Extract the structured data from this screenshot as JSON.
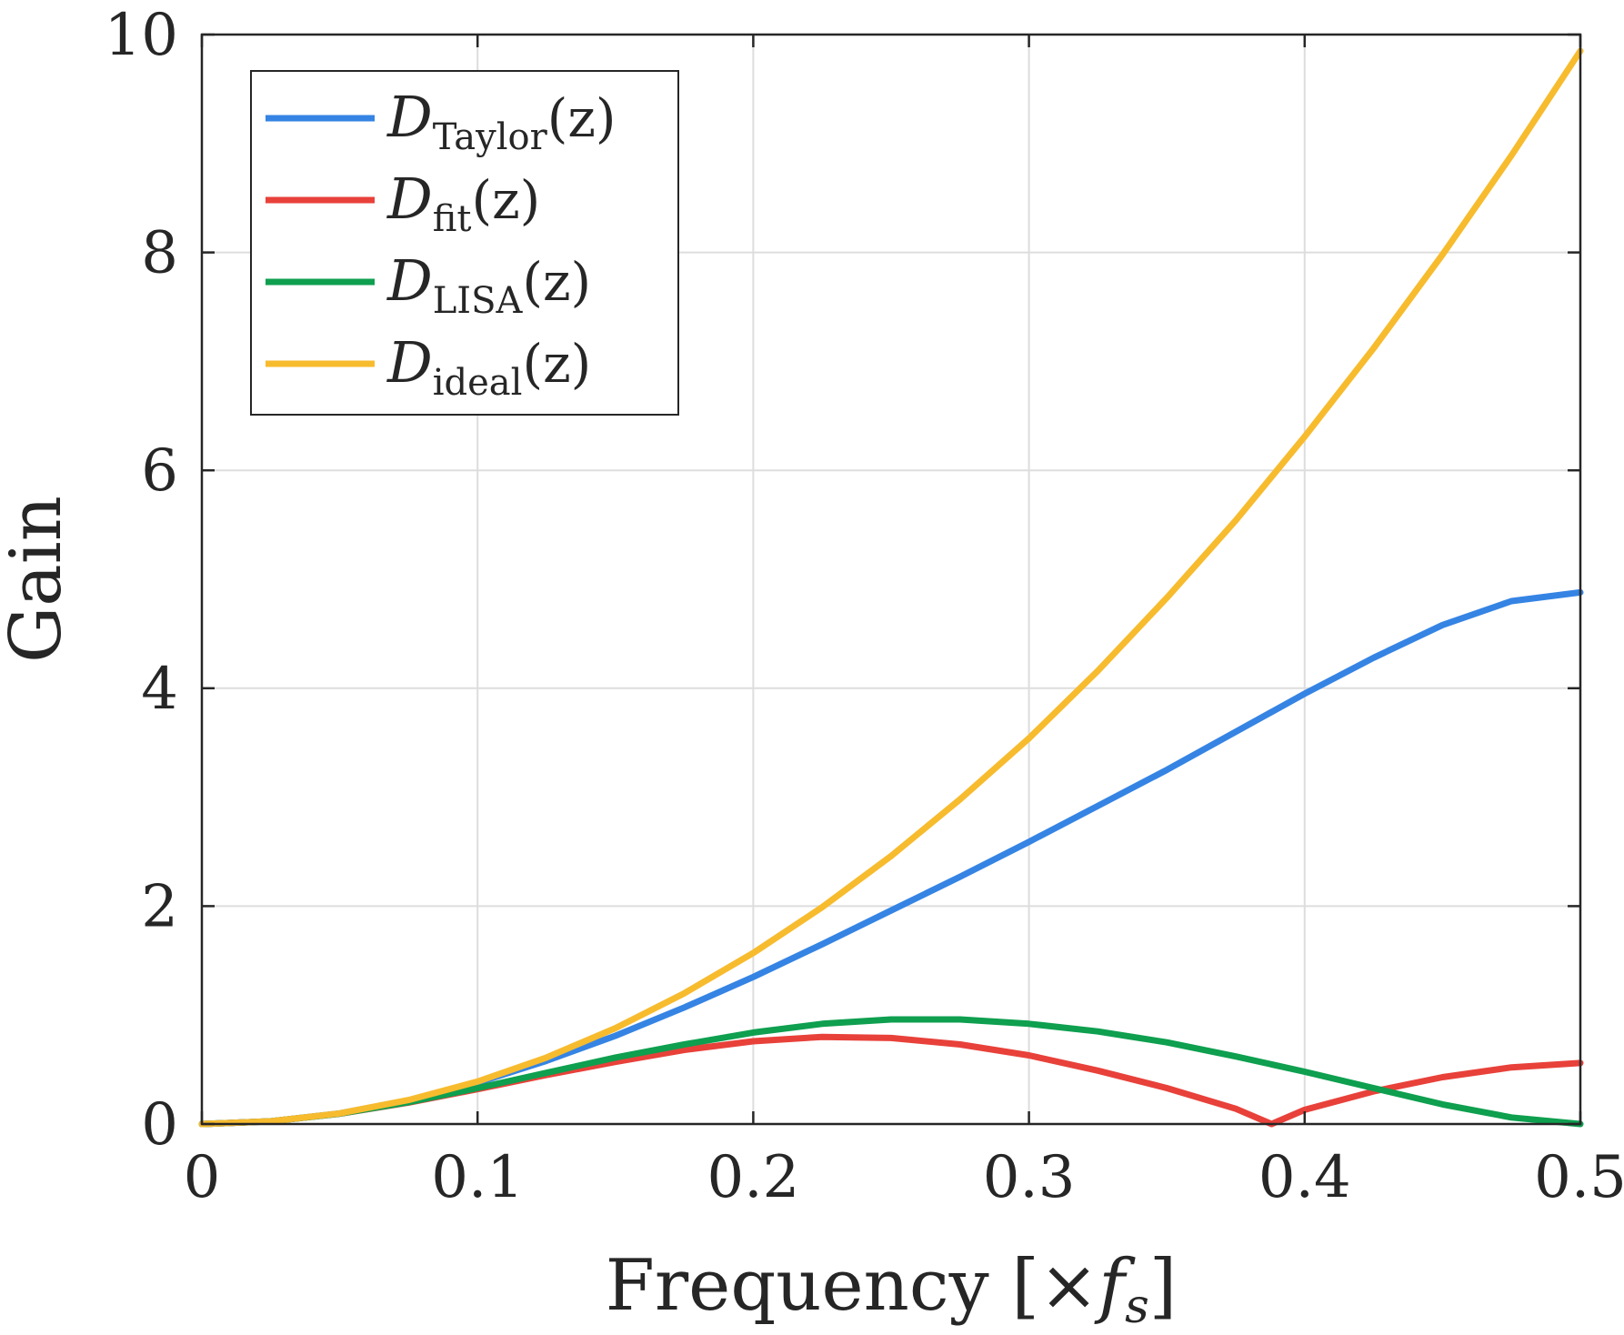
{
  "chart_data": {
    "type": "line",
    "xlabel": "Frequency [×f_s]",
    "xlabel_parts": {
      "word": "Frequency",
      "open": "[×",
      "f": "f",
      "sub": "s",
      "close": "]"
    },
    "ylabel": "Gain",
    "xlim": [
      0,
      0.5
    ],
    "ylim": [
      0,
      10
    ],
    "xticks": [
      0,
      0.1,
      0.2,
      0.3,
      0.4,
      0.5
    ],
    "xtick_labels": [
      "0",
      "0.1",
      "0.2",
      "0.3",
      "0.4",
      "0.5"
    ],
    "yticks": [
      0,
      2,
      4,
      6,
      8,
      10
    ],
    "ytick_labels": [
      "0",
      "2",
      "4",
      "6",
      "8",
      "10"
    ],
    "grid": true,
    "legend_position": "top-left",
    "series": [
      {
        "name": "D_Taylor(z)",
        "label_main": "D",
        "label_sub": "Taylor",
        "label_arg": "(z)",
        "color": "#3584e4",
        "x": [
          0,
          0.025,
          0.05,
          0.075,
          0.1,
          0.125,
          0.15,
          0.175,
          0.2,
          0.225,
          0.25,
          0.275,
          0.3,
          0.325,
          0.35,
          0.375,
          0.4,
          0.425,
          0.45,
          0.475,
          0.5
        ],
        "y": [
          0,
          0.025,
          0.098,
          0.218,
          0.38,
          0.58,
          0.81,
          1.07,
          1.35,
          1.65,
          1.96,
          2.27,
          2.59,
          2.92,
          3.25,
          3.6,
          3.95,
          4.28,
          4.58,
          4.8,
          4.88
        ]
      },
      {
        "name": "D_fit(z)",
        "label_main": "D",
        "label_sub": "fit",
        "label_arg": "(z)",
        "color": "#e8413a",
        "x": [
          0,
          0.025,
          0.05,
          0.075,
          0.1,
          0.125,
          0.15,
          0.175,
          0.2,
          0.225,
          0.25,
          0.275,
          0.3,
          0.325,
          0.35,
          0.375,
          0.388,
          0.4,
          0.425,
          0.45,
          0.475,
          0.5
        ],
        "y": [
          0,
          0.025,
          0.094,
          0.197,
          0.32,
          0.45,
          0.57,
          0.68,
          0.76,
          0.8,
          0.79,
          0.73,
          0.63,
          0.49,
          0.33,
          0.14,
          0.0,
          0.13,
          0.3,
          0.43,
          0.52,
          0.56
        ]
      },
      {
        "name": "D_LISA(z)",
        "label_main": "D",
        "label_sub": "LISA",
        "label_arg": "(z)",
        "color": "#0e9f4f",
        "x": [
          0,
          0.025,
          0.05,
          0.075,
          0.1,
          0.125,
          0.15,
          0.175,
          0.2,
          0.225,
          0.25,
          0.275,
          0.3,
          0.325,
          0.35,
          0.375,
          0.4,
          0.425,
          0.45,
          0.475,
          0.5
        ],
        "y": [
          0,
          0.025,
          0.095,
          0.2,
          0.33,
          0.47,
          0.61,
          0.73,
          0.84,
          0.92,
          0.96,
          0.96,
          0.92,
          0.85,
          0.75,
          0.62,
          0.48,
          0.33,
          0.18,
          0.06,
          0.0
        ]
      },
      {
        "name": "D_ideal(z)",
        "label_main": "D",
        "label_sub": "ideal",
        "label_arg": "(z)",
        "color": "#f7bb2e",
        "x": [
          0,
          0.025,
          0.05,
          0.075,
          0.1,
          0.125,
          0.15,
          0.175,
          0.2,
          0.225,
          0.25,
          0.275,
          0.3,
          0.325,
          0.35,
          0.375,
          0.4,
          0.425,
          0.45,
          0.475,
          0.5
        ],
        "y": [
          0,
          0.025,
          0.098,
          0.22,
          0.39,
          0.61,
          0.88,
          1.2,
          1.57,
          1.99,
          2.46,
          2.98,
          3.54,
          4.16,
          4.83,
          5.54,
          6.31,
          7.12,
          7.98,
          8.89,
          9.85
        ]
      }
    ]
  }
}
